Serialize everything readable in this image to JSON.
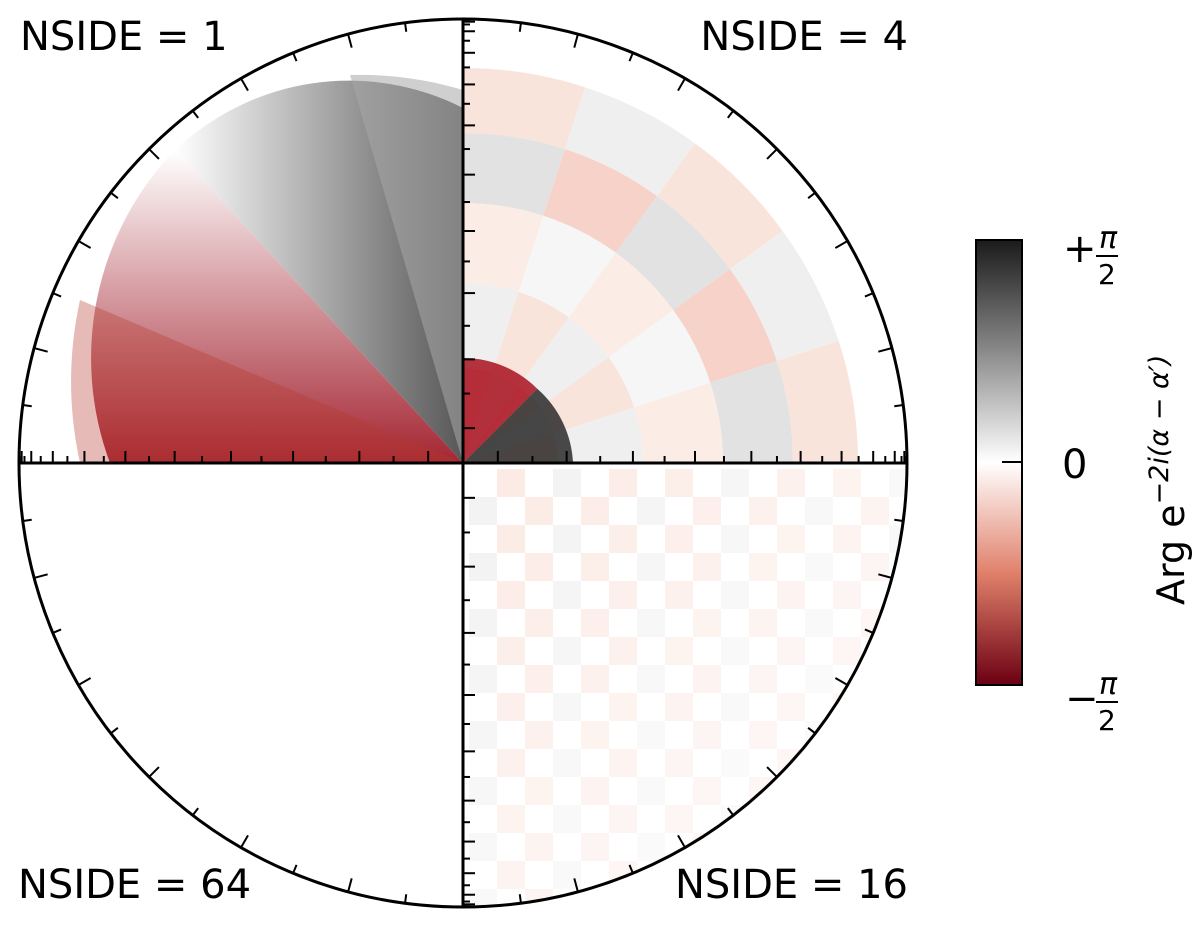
{
  "panels": [
    {
      "position": "top-left",
      "label": "NSIDE = 1",
      "nside": 1
    },
    {
      "position": "top-right",
      "label": "NSIDE = 4",
      "nside": 4
    },
    {
      "position": "bottom-right",
      "label": "NSIDE = 16",
      "nside": 16
    },
    {
      "position": "bottom-left",
      "label": "NSIDE = 64",
      "nside": 64
    }
  ],
  "colorbar": {
    "title_main": "Arg e",
    "title_exponent": "−2i(α − α′)",
    "max_sign": "+",
    "max_num": "π",
    "max_den": "2",
    "mid": "0",
    "min_sign": "−",
    "min_num": "π",
    "min_den": "2",
    "colors": {
      "top": "#1a1a1a",
      "mid": "#ffffff",
      "bottom": "#6b0012"
    }
  }
}
